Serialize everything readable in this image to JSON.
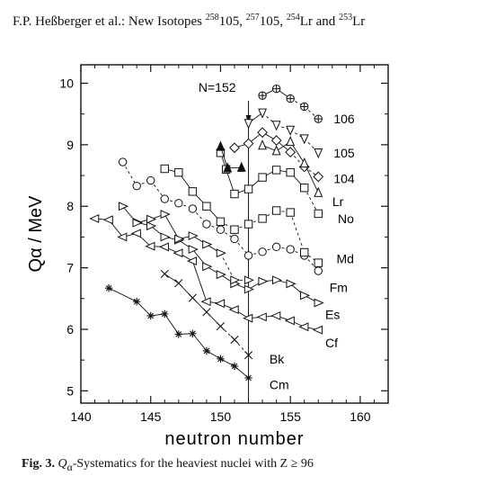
{
  "header": {
    "authors": "F.P. Heßberger et al.: New Isotopes ",
    "iso1_mass": "258",
    "iso1_z": "105, ",
    "iso2_mass": "257",
    "iso2_z": "105, ",
    "iso3_mass": "254",
    "iso3_el": "Lr and ",
    "iso4_mass": "253",
    "iso4_el": "Lr"
  },
  "caption": {
    "label": "Fig. 3.",
    "text": " Q",
    "sub": "α",
    "rest": "-Systematics for the heaviest nuclei with Z ≥ 96"
  },
  "chart_data": {
    "type": "line",
    "xlabel": "neutron number",
    "ylabel": "Qα / MeV",
    "xlim": [
      140,
      162
    ],
    "ylim": [
      4.8,
      10.3
    ],
    "xticks": [
      140,
      145,
      150,
      155,
      160
    ],
    "yticks": [
      5,
      6,
      7,
      8,
      9,
      10
    ],
    "annotation": "N=152",
    "annotation_line_x": 152,
    "grid": false,
    "series": [
      {
        "name": "Cm",
        "marker": "asterisk",
        "points": [
          [
            142,
            6.67
          ],
          [
            144,
            6.45
          ],
          [
            145,
            6.22
          ],
          [
            146,
            6.25
          ],
          [
            147,
            5.92
          ],
          [
            148,
            5.93
          ],
          [
            149,
            5.65
          ],
          [
            150,
            5.52
          ],
          [
            151,
            5.4
          ],
          [
            152,
            5.21
          ]
        ],
        "dashed_from": null
      },
      {
        "name": "Bk",
        "marker": "x",
        "points": [
          [
            146,
            6.9
          ],
          [
            147,
            6.75
          ],
          [
            148,
            6.51
          ],
          [
            149,
            6.28
          ],
          [
            150,
            6.05
          ],
          [
            151,
            5.83
          ],
          [
            152,
            5.58
          ]
        ],
        "dashed_from": 150
      },
      {
        "name": "Cf",
        "marker": "triangle-left",
        "points": [
          [
            141,
            7.8
          ],
          [
            142,
            7.78
          ],
          [
            143,
            7.5
          ],
          [
            144,
            7.56
          ],
          [
            145,
            7.35
          ],
          [
            146,
            7.34
          ],
          [
            147,
            7.24
          ],
          [
            148,
            7.11
          ],
          [
            149,
            6.45
          ],
          [
            150,
            6.42
          ],
          [
            151,
            6.32
          ],
          [
            152,
            6.18
          ],
          [
            153,
            6.2
          ],
          [
            154,
            6.22
          ],
          [
            155,
            6.14
          ],
          [
            156,
            6.04
          ],
          [
            157,
            5.99
          ]
        ],
        "dashed_from": null
      },
      {
        "name": "Es",
        "marker": "triangle-right",
        "points": [
          [
            144,
            7.74
          ],
          [
            145,
            7.68
          ],
          [
            146,
            7.5
          ],
          [
            147,
            7.45
          ],
          [
            148,
            7.3
          ],
          [
            149,
            7.02
          ],
          [
            150,
            6.89
          ],
          [
            151,
            6.74
          ],
          [
            152,
            6.65
          ],
          [
            153,
            6.78
          ],
          [
            154,
            6.8
          ],
          [
            155,
            6.74
          ],
          [
            156,
            6.55
          ],
          [
            157,
            6.43
          ]
        ],
        "dashed_from": null
      },
      {
        "name": "Fm",
        "marker": "triangle-right",
        "points": [
          [
            143,
            8.0
          ],
          [
            144,
            7.73
          ],
          [
            145,
            7.79
          ],
          [
            146,
            7.87
          ],
          [
            147,
            7.47
          ],
          [
            148,
            7.52
          ],
          [
            149,
            7.38
          ],
          [
            150,
            7.24
          ],
          [
            151,
            6.8
          ],
          [
            152,
            6.8
          ]
        ],
        "dashed_from": 150
      },
      {
        "name": "Md",
        "marker": "circle",
        "points": [
          [
            143,
            8.72
          ],
          [
            144,
            8.33
          ],
          [
            145,
            8.42
          ],
          [
            146,
            8.12
          ],
          [
            147,
            8.05
          ],
          [
            148,
            7.96
          ],
          [
            149,
            7.71
          ],
          [
            150,
            7.62
          ],
          [
            151,
            7.47
          ],
          [
            152,
            7.2
          ],
          [
            153,
            7.26
          ],
          [
            154,
            7.34
          ],
          [
            155,
            7.3
          ],
          [
            156,
            7.2
          ],
          [
            157,
            6.95
          ]
        ],
        "dashed_from": 143
      },
      {
        "name": "No",
        "marker": "square",
        "points": [
          [
            146,
            8.61
          ],
          [
            147,
            8.55
          ],
          [
            148,
            8.24
          ],
          [
            149,
            8.0
          ],
          [
            150,
            7.75
          ],
          [
            151,
            7.62
          ],
          [
            152,
            7.71
          ],
          [
            153,
            7.8
          ],
          [
            154,
            7.93
          ],
          [
            155,
            7.9
          ],
          [
            156,
            7.25
          ],
          [
            157,
            7.08
          ]
        ],
        "dashed_from": 150
      },
      {
        "name": "Lr",
        "marker": "square",
        "points": [
          [
            150,
            8.87
          ],
          [
            150.4,
            8.6
          ],
          [
            151,
            8.2
          ],
          [
            152,
            8.28
          ],
          [
            153,
            8.47
          ],
          [
            154,
            8.59
          ],
          [
            155,
            8.55
          ],
          [
            156,
            8.3
          ],
          [
            157,
            7.88
          ]
        ],
        "dashed_from": 156
      },
      {
        "name": "104",
        "marker": "diamond",
        "points": [
          [
            151,
            8.95
          ],
          [
            152,
            9.02
          ],
          [
            153,
            9.2
          ],
          [
            154,
            9.07
          ],
          [
            155,
            8.88
          ],
          [
            156,
            8.64
          ],
          [
            157,
            8.48
          ]
        ],
        "dashed_from": 155
      },
      {
        "name": "105",
        "marker": "triangle-down",
        "points": [
          [
            152,
            9.35
          ],
          [
            153,
            9.52
          ],
          [
            154,
            9.32
          ],
          [
            155,
            9.24
          ],
          [
            156,
            9.1
          ],
          [
            157,
            8.87
          ]
        ],
        "dashed_from": 153
      },
      {
        "name": "106",
        "marker": "circle-plus",
        "points": [
          [
            153,
            9.8
          ],
          [
            154,
            9.91
          ],
          [
            155,
            9.75
          ],
          [
            156,
            9.62
          ],
          [
            157,
            9.42
          ]
        ],
        "dashed_from": 155
      },
      {
        "name": "Lr-filled",
        "marker": "triangle-up-filled",
        "points": [
          [
            150,
            8.97
          ],
          [
            150.5,
            8.62
          ],
          [
            151.5,
            8.63
          ]
        ],
        "dashed_from": null
      },
      {
        "name": "104-b",
        "marker": "triangle-up",
        "points": [
          [
            153,
            8.99
          ],
          [
            154,
            8.9
          ],
          [
            155,
            9.05
          ],
          [
            156,
            8.7
          ],
          [
            157,
            8.22
          ]
        ],
        "dashed_from": null
      }
    ],
    "labels": [
      {
        "text": "106",
        "x": 158.1,
        "y": 9.42
      },
      {
        "text": "105",
        "x": 158.1,
        "y": 8.87
      },
      {
        "text": "104",
        "x": 158.1,
        "y": 8.45
      },
      {
        "text": "Lr",
        "x": 158.0,
        "y": 8.08
      },
      {
        "text": "No",
        "x": 158.4,
        "y": 7.8
      },
      {
        "text": "Md",
        "x": 158.3,
        "y": 7.15
      },
      {
        "text": "Fm",
        "x": 157.8,
        "y": 6.68
      },
      {
        "text": "Es",
        "x": 157.5,
        "y": 6.24
      },
      {
        "text": "Cf",
        "x": 157.5,
        "y": 5.78
      },
      {
        "text": "Bk",
        "x": 153.5,
        "y": 5.52
      },
      {
        "text": "Cm",
        "x": 153.5,
        "y": 5.1
      }
    ]
  }
}
